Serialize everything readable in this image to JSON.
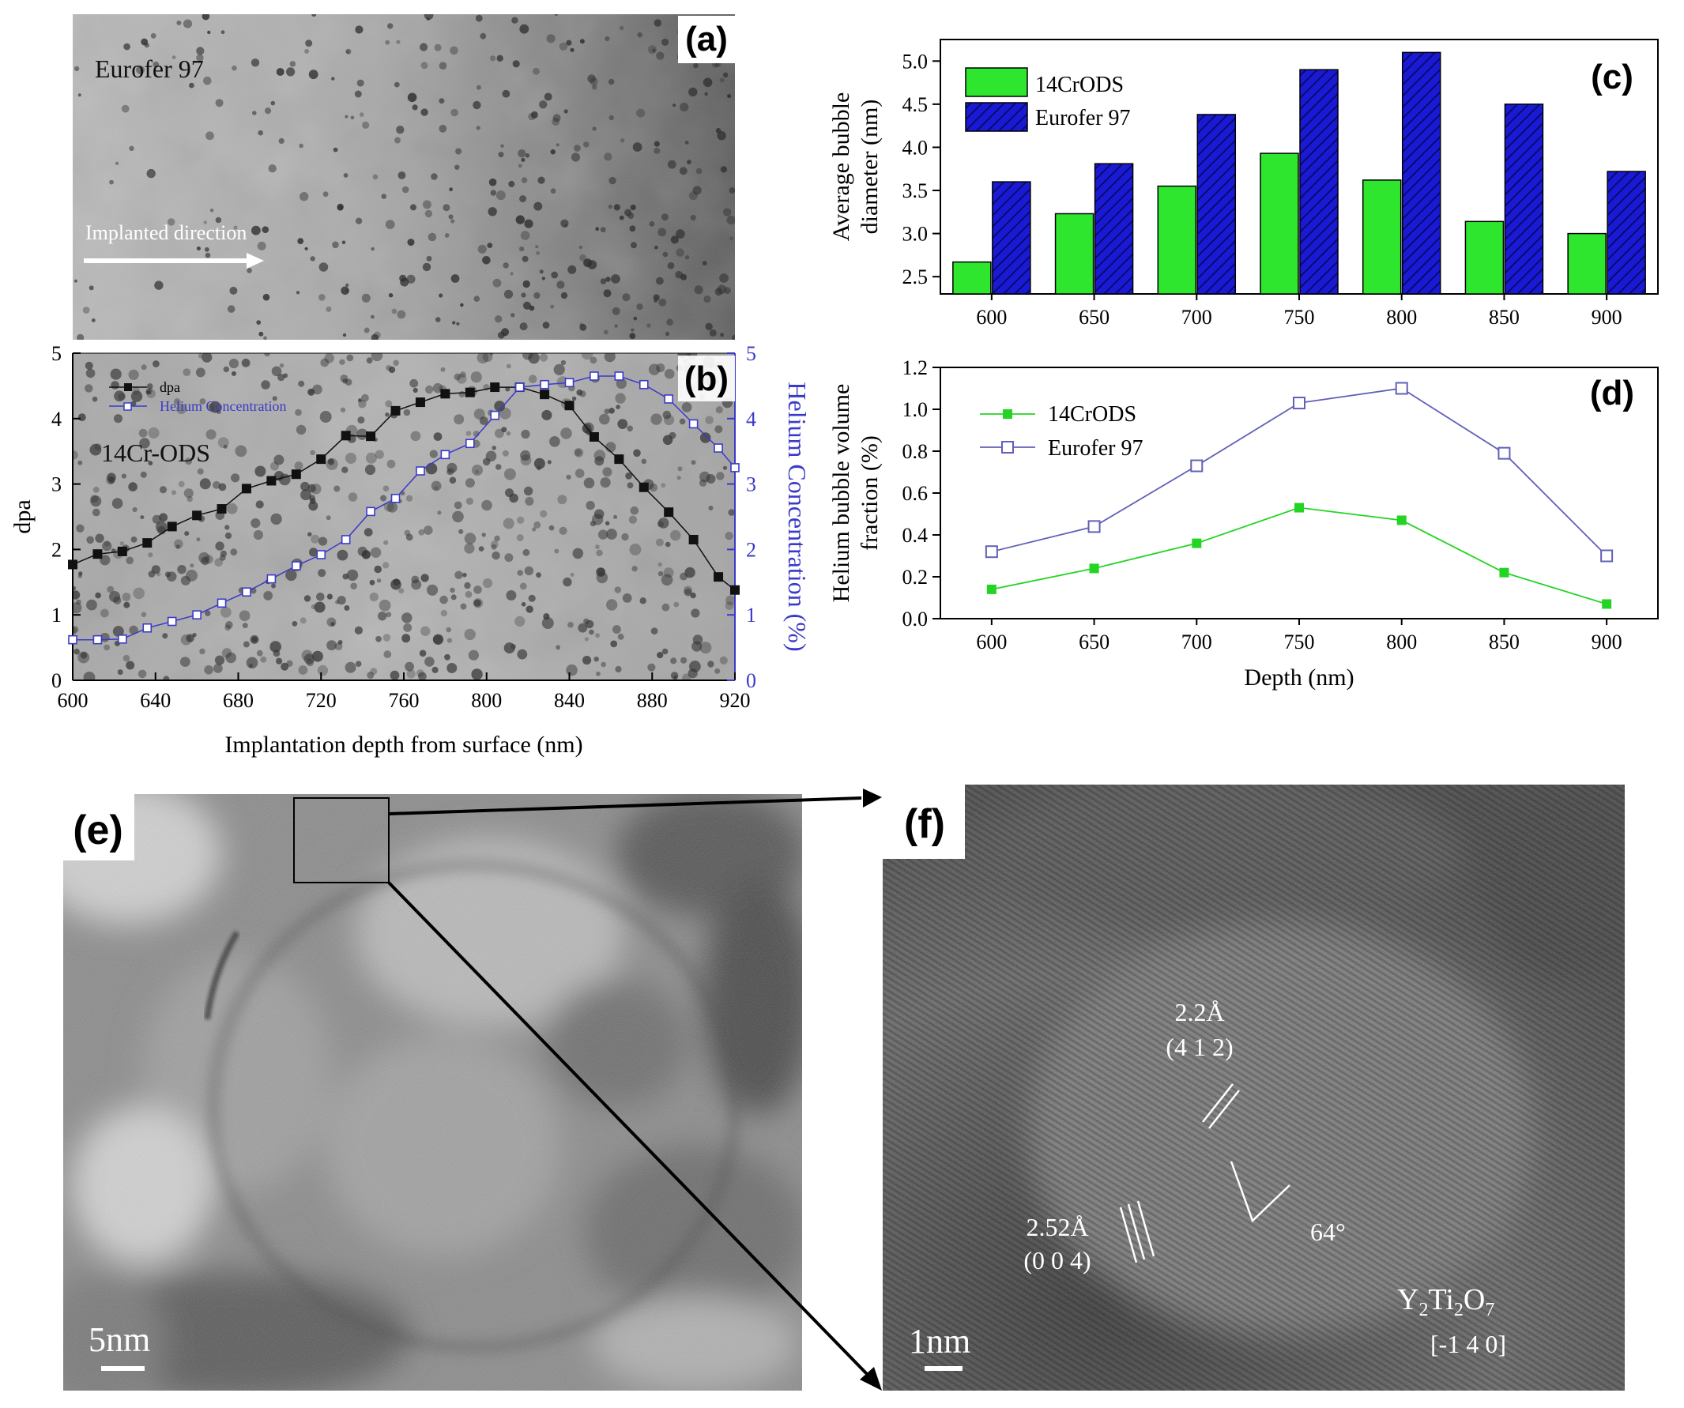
{
  "panel_labels": {
    "a": "(a)",
    "b": "(b)",
    "c": "(c)",
    "d": "(d)",
    "e": "(e)",
    "f": "(f)"
  },
  "panel_a": {
    "material": "Eurofer 97",
    "arrow_text": "Implanted direction"
  },
  "panel_e": {
    "scale_bar": "5nm"
  },
  "panel_f": {
    "scale_bar": "1nm",
    "spacing_1": "2.2Å",
    "plane_1": "(4 1 2)",
    "spacing_2": "2.52Å",
    "plane_2": "(0 0 4)",
    "angle": "64°",
    "phase": {
      "Y": "Y",
      "sub2a": "2",
      "Ti": "Ti",
      "sub2b": "2",
      "O": "O",
      "sub7": "7"
    },
    "zone_axis": "[-1 4 0]"
  },
  "colors": {
    "green": "#2ee62e",
    "blue": "#1a1ad4",
    "line_green": "#24d424",
    "line_blue": "#6060b8",
    "dpa_black": "#111111",
    "helium_blue": "#3a3ac8"
  },
  "chart_data": [
    {
      "id": "b",
      "type": "line",
      "inset_label": "14Cr-ODS",
      "xlabel": "Implantation depth from surface (nm)",
      "ylabel": "dpa",
      "y2label": "Helium Concentration (%)",
      "xlim": [
        600,
        920
      ],
      "ylim": [
        0,
        5
      ],
      "y2lim": [
        0,
        5
      ],
      "xticks": [
        "600",
        "640",
        "680",
        "720",
        "760",
        "800",
        "840",
        "880",
        "920"
      ],
      "yticks": [
        "0",
        "1",
        "2",
        "3",
        "4",
        "5"
      ],
      "y2ticks": [
        "0",
        "1",
        "2",
        "3",
        "4",
        "5"
      ],
      "series": [
        {
          "name": "dpa",
          "axis": "left",
          "x": [
            600,
            612,
            624,
            636,
            648,
            660,
            672,
            684,
            696,
            708,
            720,
            732,
            744,
            756,
            768,
            780,
            792,
            804,
            816,
            828,
            840,
            852,
            864,
            876,
            888,
            900,
            912,
            920
          ],
          "y": [
            1.77,
            1.93,
            1.97,
            2.1,
            2.35,
            2.52,
            2.62,
            2.93,
            3.05,
            3.15,
            3.38,
            3.74,
            3.73,
            4.12,
            4.25,
            4.38,
            4.4,
            4.48,
            4.48,
            4.37,
            4.2,
            3.72,
            3.38,
            2.95,
            2.57,
            2.15,
            1.58,
            1.38
          ]
        },
        {
          "name": "Helium Concentration",
          "axis": "right",
          "x": [
            600,
            612,
            624,
            636,
            648,
            660,
            672,
            684,
            696,
            708,
            720,
            732,
            744,
            756,
            768,
            780,
            792,
            804,
            816,
            828,
            840,
            852,
            864,
            876,
            888,
            900,
            912,
            920
          ],
          "y": [
            0.62,
            0.62,
            0.63,
            0.8,
            0.9,
            1.0,
            1.18,
            1.35,
            1.55,
            1.75,
            1.92,
            2.15,
            2.58,
            2.78,
            3.2,
            3.45,
            3.62,
            4.05,
            4.48,
            4.52,
            4.55,
            4.65,
            4.65,
            4.52,
            4.3,
            3.92,
            3.55,
            3.25
          ]
        }
      ],
      "legend_position": "top-left"
    },
    {
      "id": "c",
      "type": "bar",
      "categories": [
        "600",
        "650",
        "700",
        "750",
        "800",
        "850",
        "900"
      ],
      "series": [
        {
          "name": "14CrODS",
          "values": [
            2.67,
            3.23,
            3.55,
            3.93,
            3.62,
            3.14,
            3.0
          ]
        },
        {
          "name": "Eurofer 97",
          "values": [
            3.6,
            3.81,
            4.38,
            4.9,
            5.1,
            4.5,
            3.72
          ]
        }
      ],
      "ylabel_lines": [
        "Average bubble",
        "diameter (nm)"
      ],
      "ylim": [
        2.3,
        5.25
      ],
      "yticks": [
        "2.5",
        "3.0",
        "3.5",
        "4.0",
        "4.5",
        "5.0"
      ],
      "legend_position": "top-left"
    },
    {
      "id": "d",
      "type": "line",
      "x": [
        600,
        650,
        700,
        750,
        800,
        850,
        900
      ],
      "series": [
        {
          "name": "14CrODS",
          "values": [
            0.14,
            0.24,
            0.36,
            0.53,
            0.47,
            0.22,
            0.07
          ]
        },
        {
          "name": "Eurofer 97",
          "values": [
            0.32,
            0.44,
            0.73,
            1.03,
            1.1,
            0.79,
            0.3
          ]
        }
      ],
      "xlabel": "Depth (nm)",
      "ylabel_lines": [
        "Helium bubble volume",
        "fraction (%)"
      ],
      "xlim": [
        575,
        925
      ],
      "ylim": [
        0,
        1.2
      ],
      "xticks": [
        "600",
        "650",
        "700",
        "750",
        "800",
        "850",
        "900"
      ],
      "yticks": [
        "0.0",
        "0.2",
        "0.4",
        "0.6",
        "0.8",
        "1.0",
        "1.2"
      ],
      "legend_position": "top-left"
    }
  ]
}
